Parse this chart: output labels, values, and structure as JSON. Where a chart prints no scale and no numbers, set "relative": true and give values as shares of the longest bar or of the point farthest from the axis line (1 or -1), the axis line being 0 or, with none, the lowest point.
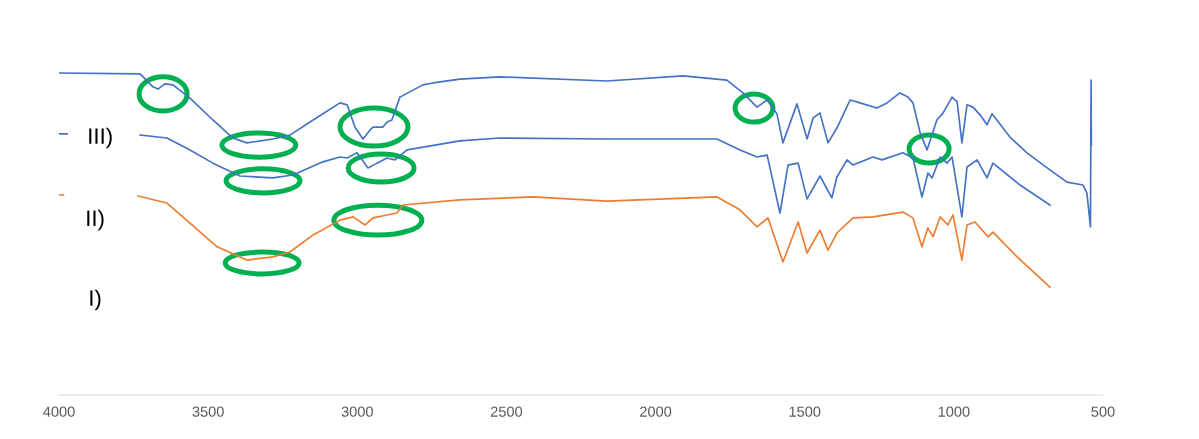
{
  "chart_data": {
    "type": "line",
    "relative": true,
    "xlim": [
      4000,
      500
    ],
    "xticks": [
      4000,
      3500,
      3000,
      2500,
      2000,
      1500,
      1000,
      500
    ],
    "grid": false,
    "tick_labels": "x",
    "annotations": [
      "III)",
      "II)",
      "I)"
    ],
    "series": [
      {
        "color": "#4472c4",
        "x": [
          4000,
          3728,
          3685,
          3668,
          3645,
          3618,
          3561,
          3484,
          3417,
          3370,
          3283,
          3226,
          3148,
          3058,
          3034,
          3008,
          2981,
          2957,
          2947,
          2914,
          2900,
          2884,
          2857,
          2780,
          2746,
          2656,
          2522,
          2163,
          1908,
          1761,
          1707,
          1660,
          1626,
          1593,
          1573,
          1526,
          1492,
          1472,
          1449,
          1422,
          1392,
          1348,
          1315,
          1258,
          1224,
          1181,
          1154,
          1137,
          1113,
          1090,
          1057,
          1036,
          1006,
          989,
          973,
          956,
          936,
          912,
          889,
          872,
          812,
          755,
          678,
          621,
          567,
          554,
          542,
          540,
          539
        ],
        "values": [
          1.0,
          0.997,
          0.957,
          0.95,
          0.966,
          0.963,
          0.922,
          0.854,
          0.798,
          0.783,
          0.795,
          0.807,
          0.854,
          0.907,
          0.901,
          0.832,
          0.795,
          0.823,
          0.832,
          0.832,
          0.848,
          0.854,
          0.925,
          0.963,
          0.969,
          0.981,
          0.988,
          0.975,
          0.991,
          0.978,
          0.938,
          0.894,
          0.916,
          0.873,
          0.783,
          0.904,
          0.795,
          0.86,
          0.876,
          0.783,
          0.829,
          0.916,
          0.907,
          0.891,
          0.907,
          0.938,
          0.925,
          0.907,
          0.814,
          0.761,
          0.854,
          0.876,
          0.925,
          0.91,
          0.783,
          0.901,
          0.894,
          0.87,
          0.839,
          0.873,
          0.801,
          0.752,
          0.699,
          0.661,
          0.652,
          0.627,
          0.522,
          0.978,
          0.776
        ]
      },
      {
        "color": "#4472c4",
        "x": [
          4000,
          3973,
          3850,
          3728,
          3638,
          3561,
          3484,
          3393,
          3283,
          3216,
          3115,
          3058,
          3034,
          3001,
          2964,
          2934,
          2900,
          2874,
          2833,
          2656,
          2522,
          2163,
          1794,
          1717,
          1660,
          1626,
          1583,
          1556,
          1522,
          1492,
          1449,
          1409,
          1392,
          1358,
          1338,
          1271,
          1241,
          1171,
          1137,
          1107,
          1087,
          1073,
          1046,
          1023,
          1006,
          973,
          956,
          922,
          889,
          869,
          778,
          678
        ],
        "values": [
          0.811,
          0.811,
          null,
          0.807,
          0.798,
          0.761,
          0.72,
          0.68,
          0.674,
          0.683,
          0.724,
          0.739,
          0.736,
          0.752,
          0.705,
          0.72,
          0.736,
          0.73,
          0.761,
          0.789,
          0.798,
          0.795,
          0.795,
          0.761,
          0.739,
          0.745,
          0.565,
          0.714,
          0.72,
          0.609,
          0.68,
          0.612,
          0.677,
          0.73,
          0.714,
          0.739,
          0.73,
          0.752,
          0.736,
          0.615,
          0.689,
          0.674,
          0.739,
          0.72,
          0.739,
          0.553,
          0.708,
          0.73,
          0.674,
          0.72,
          0.652,
          0.59
        ]
      },
      {
        "color": "#ed7d31",
        "x": [
          4000,
          3985,
          3850,
          3735,
          3638,
          3561,
          3470,
          3370,
          3283,
          3226,
          3148,
          3058,
          3014,
          2974,
          2947,
          2900,
          2867,
          2847,
          2656,
          2411,
          2163,
          1794,
          1717,
          1660,
          1623,
          1573,
          1522,
          1492,
          1449,
          1422,
          1392,
          1338,
          1271,
          1171,
          1137,
          1107,
          1087,
          1070,
          1046,
          1020,
          1003,
          973,
          956,
          929,
          885,
          869,
          788,
          678
        ],
        "values": [
          0.621,
          0.621,
          null,
          0.618,
          0.596,
          0.534,
          0.46,
          0.419,
          0.429,
          0.444,
          0.497,
          0.543,
          0.553,
          0.528,
          0.55,
          0.559,
          0.565,
          0.59,
          0.606,
          0.615,
          0.602,
          0.615,
          0.575,
          0.522,
          0.55,
          0.413,
          0.537,
          0.441,
          0.512,
          0.45,
          0.503,
          0.55,
          0.553,
          0.568,
          0.55,
          0.46,
          0.519,
          0.491,
          0.553,
          0.528,
          0.559,
          0.419,
          0.528,
          0.537,
          0.491,
          0.506,
          0.429,
          0.335
        ]
      }
    ]
  }
}
